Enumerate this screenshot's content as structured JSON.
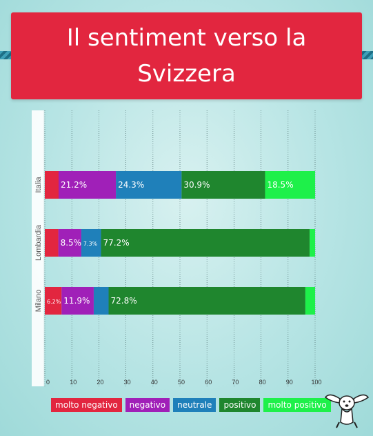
{
  "title": "Il sentiment verso la Svizzera",
  "colors": {
    "molto_negativo": "#e2263f",
    "negativo": "#a020b8",
    "neutrale": "#1f80ba",
    "positivo": "#1f862e",
    "molto_positivo": "#1ef04a"
  },
  "chart_data": {
    "type": "bar",
    "orientation": "horizontal",
    "stacked": true,
    "categories": [
      "Italia",
      "Lombardia",
      "Milano"
    ],
    "series": [
      {
        "name": "molto negativo",
        "values": [
          5.1,
          5.0,
          6.2
        ],
        "labels": [
          "",
          "",
          "6.2%"
        ]
      },
      {
        "name": "negativo",
        "values": [
          21.2,
          8.5,
          11.9
        ],
        "labels": [
          "21.2%",
          "8.5%",
          "11.9%"
        ]
      },
      {
        "name": "neutrale",
        "values": [
          24.3,
          7.3,
          5.5
        ],
        "labels": [
          "24.3%",
          "7.3%",
          ""
        ]
      },
      {
        "name": "positivo",
        "values": [
          30.9,
          77.2,
          72.8
        ],
        "labels": [
          "30.9%",
          "77.2%",
          "72.8%"
        ]
      },
      {
        "name": "molto positivo",
        "values": [
          18.5,
          2.0,
          3.6
        ],
        "labels": [
          "18.5%",
          "",
          ""
        ]
      }
    ],
    "xlim": [
      0,
      100
    ],
    "xticks": [
      "0",
      "10",
      "20",
      "30",
      "40",
      "50",
      "60",
      "70",
      "80",
      "90",
      "100"
    ],
    "grid": true,
    "legend_position": "bottom"
  }
}
